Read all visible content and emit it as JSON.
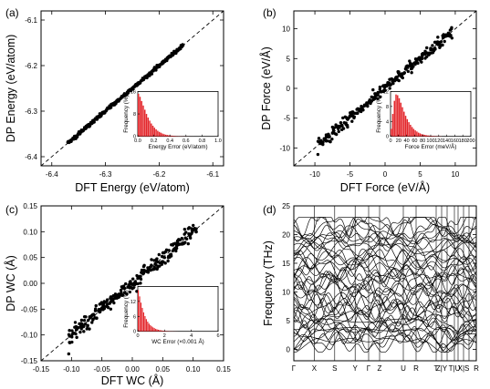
{
  "colors": {
    "accent": "#e3262b",
    "axis": "#000000",
    "ref_line": "#000000"
  },
  "chart_data": [
    {
      "type": "scatter",
      "panel_label": "(a)",
      "xlabel": "DFT Energy (eV/atom)",
      "ylabel": "DP Energy (eV/atom)",
      "xlim": [
        -6.42,
        -6.08
      ],
      "ylim": [
        -6.42,
        -6.08
      ],
      "xticks": [
        -6.4,
        -6.3,
        -6.2,
        -6.1
      ],
      "yticks": [
        -6.4,
        -6.3,
        -6.2,
        -6.1
      ],
      "xtick_labels": [
        "-6.4",
        "-6.3",
        "-6.2",
        "-6.1"
      ],
      "ytick_labels": [
        "-6.4",
        "-6.3",
        "-6.2",
        "-6.1"
      ],
      "reference_line": "y = x",
      "points_range": [
        -6.37,
        -6.155
      ],
      "point_spread": 0.002,
      "inset": {
        "type": "histogram",
        "xlabel": "Energy Error (eV/atom)",
        "ylabel": "Frequency (%)",
        "xlim": [
          0,
          1.0
        ],
        "ylim": [
          0,
          16
        ],
        "xticks": [
          0,
          0.2,
          0.4,
          0.6,
          0.8,
          1.0
        ],
        "xtick_labels": [
          "0.0",
          "0.2",
          "0.4",
          "0.6",
          "0.8",
          "1.0"
        ],
        "yticks": [
          0,
          8,
          16
        ],
        "ytick_labels": [
          "0",
          "8",
          "16"
        ],
        "bin_width": 0.02,
        "values": [
          15.2,
          14.1,
          12.6,
          11.0,
          9.5,
          8.0,
          6.7,
          5.6,
          4.6,
          3.8,
          3.1,
          2.5,
          2.0,
          1.6,
          1.3,
          1.0,
          0.8,
          0.6,
          0.5,
          0.4,
          0.3,
          0.25,
          0.2,
          0.15,
          0.1,
          0.08,
          0.06,
          0.05,
          0.04,
          0.03,
          0.02,
          0.02,
          0.01,
          0.01,
          0.01
        ]
      }
    },
    {
      "type": "scatter",
      "panel_label": "(b)",
      "xlabel": "DFT Force (eV/Å)",
      "ylabel": "DP Force (eV/Å)",
      "xlim": [
        -13,
        13
      ],
      "ylim": [
        -13,
        13
      ],
      "xticks": [
        -10,
        -5,
        0,
        5,
        10
      ],
      "yticks": [
        -10,
        -5,
        0,
        5,
        10
      ],
      "xtick_labels": [
        "-10",
        "-5",
        "0",
        "5",
        "10"
      ],
      "ytick_labels": [
        "-10",
        "-5",
        "0",
        "5",
        "10"
      ],
      "reference_line": "y = x",
      "points_range": [
        -9.6,
        9.6
      ],
      "point_spread": 0.45,
      "inset": {
        "type": "histogram",
        "xlabel": "Force Error (meV/Å)",
        "ylabel": "Frequency (%)",
        "xlim": [
          0,
          200
        ],
        "ylim": [
          0,
          12
        ],
        "xticks": [
          0,
          20,
          40,
          60,
          80,
          100,
          120,
          140,
          160,
          180,
          200
        ],
        "xtick_labels": [
          "0",
          "20",
          "40",
          "60",
          "80",
          "100",
          "120",
          "140",
          "160",
          "180",
          "200"
        ],
        "yticks": [
          0,
          4,
          8,
          12
        ],
        "ytick_labels": [
          "0",
          "4",
          "8",
          "12"
        ],
        "bin_width": 4,
        "values": [
          2.0,
          6.0,
          9.5,
          11.2,
          11.0,
          10.2,
          9.0,
          7.8,
          6.6,
          5.5,
          4.6,
          3.8,
          3.1,
          2.5,
          2.0,
          1.6,
          1.3,
          1.0,
          0.8,
          0.6,
          0.5,
          0.4,
          0.3,
          0.25,
          0.2,
          0.15,
          0.12,
          0.1,
          0.08,
          0.06,
          0.05,
          0.04
        ]
      }
    },
    {
      "type": "scatter",
      "panel_label": "(c)",
      "xlabel": "DFT WC (Å)",
      "ylabel": "DP WC (Å)",
      "xlim": [
        -0.15,
        0.15
      ],
      "ylim": [
        -0.15,
        0.15
      ],
      "xticks": [
        -0.15,
        -0.1,
        -0.05,
        0,
        0.05,
        0.1,
        0.15
      ],
      "yticks": [
        -0.15,
        -0.1,
        -0.05,
        0,
        0.05,
        0.1,
        0.15
      ],
      "xtick_labels": [
        "-0.15",
        "-0.10",
        "-0.05",
        "0.00",
        "0.05",
        "0.10",
        "0.15"
      ],
      "ytick_labels": [
        "-0.15",
        "-0.10",
        "-0.05",
        "0.00",
        "0.05",
        "0.10",
        "0.15"
      ],
      "reference_line": "y = x",
      "points_range": [
        -0.105,
        0.105
      ],
      "point_spread": 0.008,
      "inset": {
        "type": "histogram",
        "xlabel": "WC Error (×0.001 Å)",
        "ylabel": "Frequency (%)",
        "xlim": [
          0,
          6
        ],
        "ylim": [
          0,
          18
        ],
        "xticks": [
          0,
          2,
          4,
          6
        ],
        "xtick_labels": [
          "0",
          "2",
          "4",
          "6"
        ],
        "yticks": [
          0,
          6,
          12,
          18
        ],
        "ytick_labels": [
          "0",
          "6",
          "12",
          "18"
        ],
        "bin_width": 0.1,
        "values": [
          16.5,
          14.0,
          11.5,
          9.4,
          7.6,
          6.1,
          4.9,
          3.9,
          3.1,
          2.5,
          2.0,
          1.6,
          1.3,
          1.0,
          0.8,
          0.65,
          0.5,
          0.4,
          0.32,
          0.25,
          0.2,
          0.16,
          0.13,
          0.1,
          0.08,
          0.06,
          0.05,
          0.04,
          0.03,
          0.02
        ]
      }
    },
    {
      "type": "line",
      "panel_label": "(d)",
      "xlabel": "",
      "ylabel": "Frequency (THz)",
      "ylim": [
        -2,
        25
      ],
      "yticks": [
        0,
        5,
        10,
        15,
        20,
        25
      ],
      "ytick_labels": [
        "0",
        "5",
        "10",
        "15",
        "20",
        "25"
      ],
      "high_symmetry_labels": [
        "Γ",
        "X",
        "S",
        "Y",
        "Γ",
        "Z",
        "U",
        "R",
        "T",
        "Z|Y",
        "T|U",
        "X|S",
        "R"
      ],
      "high_symmetry_positions": [
        0,
        0.56,
        1.12,
        1.68,
        2.05,
        2.35,
        3.0,
        3.35,
        3.9,
        4.05,
        4.4,
        4.65,
        5.0
      ],
      "segment_boundaries": [
        0,
        0.56,
        1.12,
        1.68,
        2.05,
        2.35,
        3.0,
        3.35,
        3.9,
        4.05,
        4.2,
        4.4,
        4.5,
        4.65,
        4.8,
        5.0
      ],
      "band_count": 48,
      "band_range_thz": [
        -0.5,
        23
      ]
    }
  ]
}
